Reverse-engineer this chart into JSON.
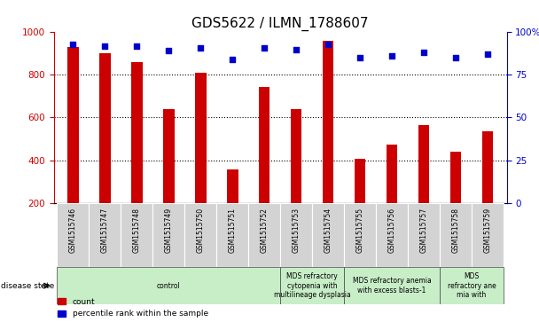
{
  "title": "GDS5622 / ILMN_1788607",
  "samples": [
    "GSM1515746",
    "GSM1515747",
    "GSM1515748",
    "GSM1515749",
    "GSM1515750",
    "GSM1515751",
    "GSM1515752",
    "GSM1515753",
    "GSM1515754",
    "GSM1515755",
    "GSM1515756",
    "GSM1515757",
    "GSM1515758",
    "GSM1515759"
  ],
  "counts": [
    930,
    900,
    860,
    640,
    810,
    355,
    745,
    640,
    960,
    405,
    475,
    565,
    440,
    535
  ],
  "percentiles": [
    93,
    92,
    92,
    89,
    91,
    84,
    91,
    90,
    93,
    85,
    86,
    88,
    85,
    87
  ],
  "ylim_left": [
    200,
    1000
  ],
  "ylim_right": [
    0,
    100
  ],
  "yticks_left": [
    200,
    400,
    600,
    800,
    1000
  ],
  "yticks_right": [
    0,
    25,
    50,
    75,
    100
  ],
  "bar_color": "#cc0000",
  "dot_color": "#0000cc",
  "tick_area_color": "#d3d3d3",
  "disease_groups": [
    {
      "label": "control",
      "start": 0,
      "end": 7
    },
    {
      "label": "MDS refractory\ncytopenia with\nmultilineage dysplasia",
      "start": 7,
      "end": 9
    },
    {
      "label": "MDS refractory anemia\nwith excess blasts-1",
      "start": 9,
      "end": 12
    },
    {
      "label": "MDS\nrefractory ane\nmia with",
      "start": 12,
      "end": 14
    }
  ],
  "disease_bg_color": "#c8eec8",
  "title_fontsize": 11,
  "tick_fontsize": 7.5,
  "sample_fontsize": 5.5,
  "disease_fontsize": 5.5,
  "legend_fontsize": 6.5,
  "bar_width": 0.35
}
